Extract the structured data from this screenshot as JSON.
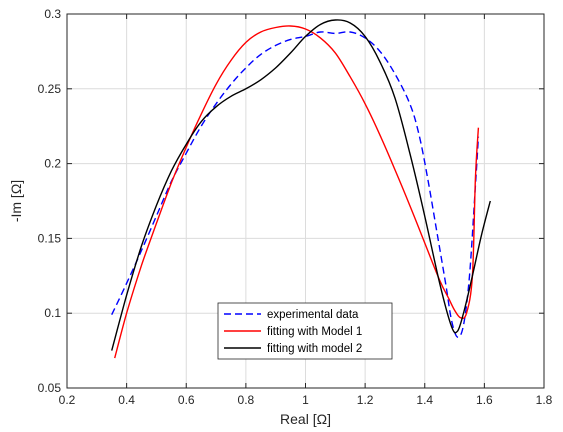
{
  "chart_data": {
    "type": "line",
    "xlabel": "Real [Ω]",
    "ylabel": "-Im [Ω]",
    "xlim": [
      0.2,
      1.8
    ],
    "ylim": [
      0.05,
      0.3
    ],
    "xticks": [
      0.2,
      0.4,
      0.6,
      0.8,
      1,
      1.2,
      1.4,
      1.6,
      1.8
    ],
    "yticks": [
      0.05,
      0.1,
      0.15,
      0.2,
      0.25,
      0.3
    ],
    "xtick_labels": [
      "0.2",
      "0.4",
      "0.6",
      "0.8",
      "1",
      "1.2",
      "1.4",
      "1.6",
      "1.8"
    ],
    "ytick_labels": [
      "0.05",
      "0.1",
      "0.15",
      "0.2",
      "0.25",
      "0.3"
    ],
    "grid": true,
    "legend_position": "bottom-center",
    "series": [
      {
        "name": "experimental data",
        "color": "#0000ff",
        "style": "dashed",
        "x": [
          0.35,
          0.4,
          0.45,
          0.5,
          0.55,
          0.6,
          0.65,
          0.7,
          0.75,
          0.8,
          0.85,
          0.9,
          0.95,
          1.0,
          1.05,
          1.1,
          1.15,
          1.2,
          1.25,
          1.3,
          1.35,
          1.38,
          1.41,
          1.44,
          1.47,
          1.49,
          1.51,
          1.53,
          1.55,
          1.57,
          1.58
        ],
        "y": [
          0.099,
          0.12,
          0.142,
          0.165,
          0.188,
          0.207,
          0.225,
          0.24,
          0.253,
          0.264,
          0.273,
          0.279,
          0.283,
          0.285,
          0.288,
          0.287,
          0.288,
          0.284,
          0.275,
          0.26,
          0.24,
          0.22,
          0.19,
          0.155,
          0.12,
          0.095,
          0.084,
          0.092,
          0.125,
          0.185,
          0.218
        ]
      },
      {
        "name": "fitting with Model 1",
        "color": "#ff0000",
        "style": "solid",
        "x": [
          0.36,
          0.4,
          0.45,
          0.5,
          0.55,
          0.6,
          0.65,
          0.7,
          0.75,
          0.8,
          0.85,
          0.9,
          0.95,
          1.0,
          1.05,
          1.1,
          1.15,
          1.2,
          1.25,
          1.3,
          1.35,
          1.4,
          1.45,
          1.48,
          1.5,
          1.52,
          1.54,
          1.56,
          1.57,
          1.58
        ],
        "y": [
          0.07,
          0.1,
          0.132,
          0.16,
          0.187,
          0.211,
          0.233,
          0.253,
          0.269,
          0.281,
          0.288,
          0.291,
          0.292,
          0.29,
          0.284,
          0.274,
          0.258,
          0.24,
          0.219,
          0.196,
          0.172,
          0.147,
          0.122,
          0.11,
          0.102,
          0.097,
          0.1,
          0.125,
          0.19,
          0.224
        ]
      },
      {
        "name": "fitting with model 2",
        "color": "#000000",
        "style": "solid",
        "x": [
          0.35,
          0.4,
          0.45,
          0.5,
          0.55,
          0.6,
          0.65,
          0.7,
          0.75,
          0.8,
          0.85,
          0.9,
          0.95,
          1.0,
          1.05,
          1.1,
          1.15,
          1.2,
          1.25,
          1.3,
          1.35,
          1.4,
          1.45,
          1.49,
          1.51,
          1.53,
          1.56,
          1.59,
          1.62
        ],
        "y": [
          0.075,
          0.112,
          0.145,
          0.172,
          0.195,
          0.213,
          0.228,
          0.238,
          0.245,
          0.25,
          0.256,
          0.264,
          0.274,
          0.285,
          0.293,
          0.296,
          0.294,
          0.285,
          0.268,
          0.244,
          0.207,
          0.165,
          0.12,
          0.091,
          0.088,
          0.1,
          0.125,
          0.152,
          0.175
        ]
      }
    ]
  }
}
